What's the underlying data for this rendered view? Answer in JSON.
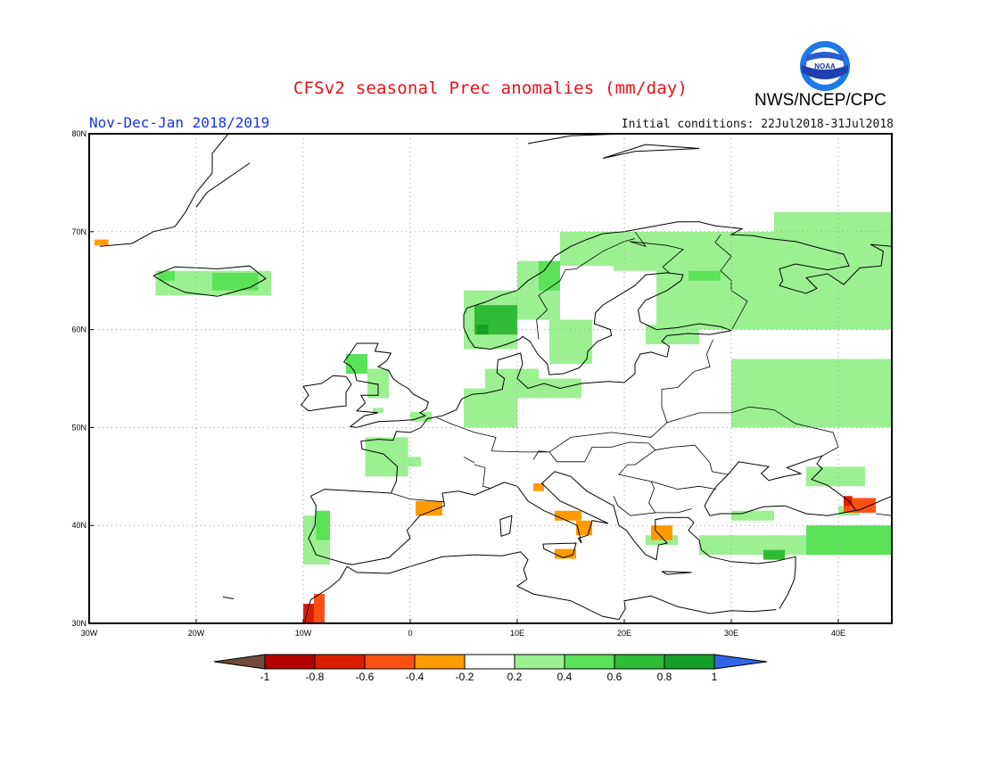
{
  "header": {
    "title": "CFSv2 seasonal Prec anomalies (mm/day)",
    "agency": "NWS/NCEP/CPC",
    "logo_text": "NOAA",
    "season": "Nov-Dec-Jan 2018/2019",
    "initial_conditions": "Initial conditions: 22Jul2018-31Jul2018"
  },
  "map": {
    "extent": {
      "lon": [
        -30,
        45
      ],
      "lat": [
        30,
        80
      ]
    },
    "lon_ticks": [
      "30W",
      "20W",
      "10W",
      "0",
      "10E",
      "20E",
      "30E",
      "40E"
    ],
    "lat_ticks": [
      "80N",
      "70N",
      "60N",
      "50N",
      "40N",
      "30N"
    ],
    "grid": "dotted",
    "anomaly_cells": [
      {
        "lon": [
          -29.5,
          -28.2
        ],
        "lat": [
          68.6,
          69.2
        ],
        "value": -0.3
      },
      {
        "lon": [
          -23.8,
          -13
        ],
        "lat": [
          63.5,
          66
        ],
        "value": 0.3
      },
      {
        "lon": [
          -18.5,
          -14.2
        ],
        "lat": [
          64,
          65.8
        ],
        "value": 0.5
      },
      {
        "lon": [
          -23.5,
          -22
        ],
        "lat": [
          65,
          66
        ],
        "value": 0.5
      },
      {
        "lon": [
          -10,
          -7.5
        ],
        "lat": [
          36,
          41
        ],
        "value": 0.3
      },
      {
        "lon": [
          -8.8,
          -7.5
        ],
        "lat": [
          38.5,
          41.5
        ],
        "value": 0.5
      },
      {
        "lon": [
          -3.5,
          -2.5
        ],
        "lat": [
          51.5,
          52
        ],
        "value": 0.3
      },
      {
        "lon": [
          -6,
          -4
        ],
        "lat": [
          55.5,
          57.5
        ],
        "value": 0.5
      },
      {
        "lon": [
          -4,
          -2
        ],
        "lat": [
          53,
          56
        ],
        "value": 0.3
      },
      {
        "lon": [
          -4.2,
          -0.2
        ],
        "lat": [
          45,
          49
        ],
        "value": 0.3
      },
      {
        "lon": [
          -0.2,
          1
        ],
        "lat": [
          46,
          47
        ],
        "value": 0.3
      },
      {
        "lon": [
          0,
          2
        ],
        "lat": [
          50.6,
          51.6
        ],
        "value": 0.3
      },
      {
        "lon": [
          5,
          10
        ],
        "lat": [
          50,
          54
        ],
        "value": 0.3
      },
      {
        "lon": [
          7,
          12
        ],
        "lat": [
          54,
          56
        ],
        "value": 0.3
      },
      {
        "lon": [
          10,
          16
        ],
        "lat": [
          53,
          55
        ],
        "value": 0.3
      },
      {
        "lon": [
          5,
          10
        ],
        "lat": [
          58,
          64
        ],
        "value": 0.3
      },
      {
        "lon": [
          6,
          10
        ],
        "lat": [
          59.5,
          62.5
        ],
        "value": 0.6
      },
      {
        "lon": [
          6.2,
          7.3
        ],
        "lat": [
          59.5,
          60.5
        ],
        "value": 0.8
      },
      {
        "lon": [
          10,
          14
        ],
        "lat": [
          61,
          67
        ],
        "value": 0.3
      },
      {
        "lon": [
          12,
          14
        ],
        "lat": [
          64,
          67
        ],
        "value": 0.5
      },
      {
        "lon": [
          14,
          20
        ],
        "lat": [
          66.5,
          70
        ],
        "value": 0.3
      },
      {
        "lon": [
          19,
          24
        ],
        "lat": [
          66,
          70
        ],
        "value": 0.3
      },
      {
        "lon": [
          13,
          17
        ],
        "lat": [
          56.5,
          61
        ],
        "value": 0.3
      },
      {
        "lon": [
          23,
          45
        ],
        "lat": [
          60,
          70
        ],
        "value": 0.3
      },
      {
        "lon": [
          26,
          29
        ],
        "lat": [
          65,
          66
        ],
        "value": 0.5
      },
      {
        "lon": [
          34,
          45
        ],
        "lat": [
          65,
          72
        ],
        "value": 0.3
      },
      {
        "lon": [
          22,
          27
        ],
        "lat": [
          58.5,
          60.5
        ],
        "value": 0.3
      },
      {
        "lon": [
          30,
          45
        ],
        "lat": [
          50,
          57
        ],
        "value": 0.3
      },
      {
        "lon": [
          37,
          42.5
        ],
        "lat": [
          44,
          46
        ],
        "value": 0.3
      },
      {
        "lon": [
          27,
          38
        ],
        "lat": [
          37,
          39
        ],
        "value": 0.3
      },
      {
        "lon": [
          37,
          45
        ],
        "lat": [
          37,
          40
        ],
        "value": 0.5
      },
      {
        "lon": [
          33,
          35
        ],
        "lat": [
          36.5,
          37.5
        ],
        "value": 0.7
      },
      {
        "lon": [
          30,
          34
        ],
        "lat": [
          40.5,
          41.5
        ],
        "value": 0.3
      },
      {
        "lon": [
          40,
          42
        ],
        "lat": [
          41,
          42
        ],
        "value": 0.3
      },
      {
        "lon": [
          22,
          25
        ],
        "lat": [
          38,
          39
        ],
        "value": 0.3
      },
      {
        "lon": [
          -10,
          -9
        ],
        "lat": [
          30,
          32
        ],
        "value": -0.6
      },
      {
        "lon": [
          -9,
          -8
        ],
        "lat": [
          30,
          33
        ],
        "value": -0.4
      },
      {
        "lon": [
          0.5,
          3
        ],
        "lat": [
          41,
          42.5
        ],
        "value": -0.3
      },
      {
        "lon": [
          11.5,
          12.5
        ],
        "lat": [
          43.5,
          44.3
        ],
        "value": -0.3
      },
      {
        "lon": [
          13.5,
          16
        ],
        "lat": [
          40.5,
          41.5
        ],
        "value": -0.3
      },
      {
        "lon": [
          15.5,
          17
        ],
        "lat": [
          39,
          40.5
        ],
        "value": -0.3
      },
      {
        "lon": [
          13.5,
          15.5
        ],
        "lat": [
          36.6,
          37.6
        ],
        "value": -0.3
      },
      {
        "lon": [
          22.5,
          24.5
        ],
        "lat": [
          38.5,
          40
        ],
        "value": -0.3
      },
      {
        "lon": [
          40.5,
          43.5
        ],
        "lat": [
          41.3,
          42.8
        ],
        "value": -0.5
      },
      {
        "lon": [
          40.5,
          41.3
        ],
        "lat": [
          42,
          43
        ],
        "value": -0.7
      }
    ]
  },
  "colorbar": {
    "tick_labels": [
      "-1",
      "-0.8",
      "-0.6",
      "-0.4",
      "-0.2",
      "0.2",
      "0.4",
      "0.6",
      "0.8",
      "1"
    ],
    "colors": [
      "#6e4b3a",
      "#b40000",
      "#dc1e00",
      "#ff5014",
      "#ff9b00",
      "#ffffff",
      "#9cf092",
      "#5ae258",
      "#2fbb35",
      "#14a024",
      "#3366e6"
    ]
  }
}
